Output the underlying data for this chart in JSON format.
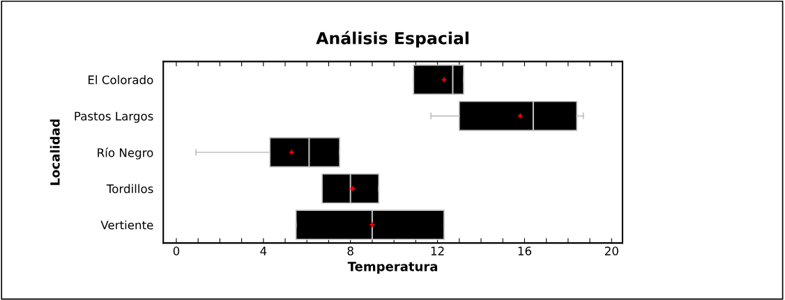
{
  "chart_data": {
    "type": "box",
    "title": "Análisis Espacial",
    "xlabel": "Temperatura",
    "ylabel": "Localidad",
    "orientation": "horizontal",
    "categories": [
      "El Colorado",
      "Pastos Largos",
      "Río Negro",
      "Tordillos",
      "Vertiente"
    ],
    "color": "#000000",
    "boxes": [
      {
        "low": 10.9,
        "q1": 10.9,
        "median": 12.7,
        "q3": 13.2,
        "high": 13.2,
        "mean": 12.3
      },
      {
        "low": 11.7,
        "q1": 13.0,
        "median": 16.4,
        "q3": 18.4,
        "high": 18.7,
        "mean": 15.8
      },
      {
        "low": 0.9,
        "q1": 4.3,
        "median": 6.1,
        "q3": 7.5,
        "high": 7.5,
        "mean": 5.3
      },
      {
        "low": 6.7,
        "q1": 6.7,
        "median": 8.0,
        "q3": 9.3,
        "high": 9.3,
        "mean": 8.1
      },
      {
        "low": 5.5,
        "q1": 5.5,
        "median": 9.0,
        "q3": 12.3,
        "high": 12.3,
        "mean": 9.0
      }
    ],
    "xlim": [
      -0.6,
      20.5
    ],
    "xticks": [
      0,
      {
        "value": 1,
        "label": null
      },
      {
        "value": 2,
        "label": null
      },
      {
        "value": 3,
        "label": null
      },
      4,
      {
        "value": 5,
        "label": null
      },
      {
        "value": 6,
        "label": null
      },
      {
        "value": 7,
        "label": null
      },
      8,
      {
        "value": 9,
        "label": null
      },
      {
        "value": 10,
        "label": null
      },
      {
        "value": 11,
        "label": null
      },
      12,
      {
        "value": 13,
        "label": null
      },
      {
        "value": 14,
        "label": null
      },
      {
        "value": 15,
        "label": null
      },
      16,
      {
        "value": 17,
        "label": null
      },
      {
        "value": 18,
        "label": null
      },
      {
        "value": 19,
        "label": null
      },
      20
    ],
    "grid": false
  }
}
